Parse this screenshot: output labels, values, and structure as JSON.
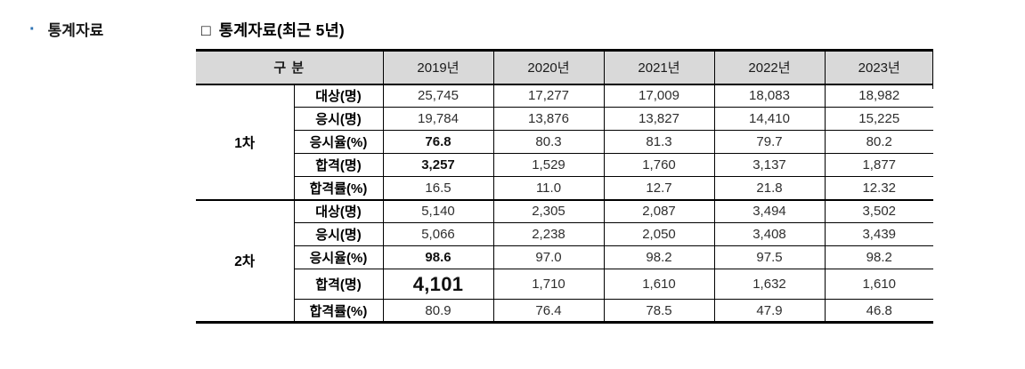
{
  "sidebar": {
    "bullet": "·",
    "label": "통계자료"
  },
  "title": {
    "bullet": "□",
    "text": "통계자료(최근 5년)"
  },
  "table": {
    "header": {
      "category": "구 분",
      "years": [
        "2019년",
        "2020년",
        "2021년",
        "2022년",
        "2023년"
      ]
    },
    "sections": [
      {
        "label": "1차",
        "rows": [
          {
            "label": "대상(명)",
            "values": [
              "25,745",
              "17,277",
              "17,009",
              "18,083",
              "18,982"
            ]
          },
          {
            "label": "응시(명)",
            "values": [
              "19,784",
              "13,876",
              "13,827",
              "14,410",
              "15,225"
            ]
          },
          {
            "label": "응시율(%)",
            "values": [
              "76.8",
              "80.3",
              "81.3",
              "79.7",
              "80.2"
            ],
            "bold_cols": [
              0
            ]
          },
          {
            "label": "합격(명)",
            "values": [
              "3,257",
              "1,529",
              "1,760",
              "3,137",
              "1,877"
            ],
            "bold_cols": [
              0
            ]
          },
          {
            "label": "합격률(%)",
            "values": [
              "16.5",
              "11.0",
              "12.7",
              "21.8",
              "12.32"
            ]
          }
        ]
      },
      {
        "label": "2차",
        "rows": [
          {
            "label": "대상(명)",
            "values": [
              "5,140",
              "2,305",
              "2,087",
              "3,494",
              "3,502"
            ]
          },
          {
            "label": "응시(명)",
            "values": [
              "5,066",
              "2,238",
              "2,050",
              "3,408",
              "3,439"
            ]
          },
          {
            "label": "응시율(%)",
            "values": [
              "98.6",
              "97.0",
              "98.2",
              "97.5",
              "98.2"
            ],
            "bold_cols": [
              0
            ]
          },
          {
            "label": "합격(명)",
            "values": [
              "4,101",
              "1,710",
              "1,610",
              "1,632",
              "1,610"
            ],
            "bold_cols": [
              0
            ],
            "large_cols": [
              0
            ],
            "tall": true
          },
          {
            "label": "합격률(%)",
            "values": [
              "80.9",
              "76.4",
              "78.5",
              "47.9",
              "46.8"
            ]
          }
        ]
      }
    ]
  }
}
